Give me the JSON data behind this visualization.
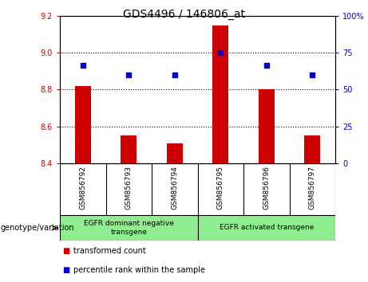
{
  "title": "GDS4496 / 146806_at",
  "samples": [
    "GSM856792",
    "GSM856793",
    "GSM856794",
    "GSM856795",
    "GSM856796",
    "GSM856797"
  ],
  "bar_values": [
    8.82,
    8.55,
    8.51,
    9.15,
    8.8,
    8.55
  ],
  "bar_bottom": 8.4,
  "percentile_values": [
    8.93,
    8.88,
    8.88,
    9.0,
    8.93,
    8.88
  ],
  "ylim": [
    8.4,
    9.2
  ],
  "yticks_left": [
    8.4,
    8.6,
    8.8,
    9.0,
    9.2
  ],
  "yticks_right": [
    0,
    25,
    50,
    75,
    100
  ],
  "yticks_right_pos": [
    8.4,
    8.6,
    8.8,
    9.0,
    9.2
  ],
  "bar_color": "#cc0000",
  "dot_color": "#0000cc",
  "group1_label": "EGFR dominant negative\ntransgene",
  "group2_label": "EGFR activated transgene",
  "group1_samples": [
    0,
    1,
    2
  ],
  "group2_samples": [
    3,
    4,
    5
  ],
  "genotype_label": "genotype/variation",
  "legend_bar_label": "transformed count",
  "legend_dot_label": "percentile rank within the sample",
  "sample_bg_color": "#d8d8d8",
  "group_bg_color": "#90ee90",
  "left_tick_color": "#cc0000",
  "right_tick_color": "#0000cc",
  "grid_lines": [
    8.6,
    8.8,
    9.0
  ],
  "bar_width": 0.35
}
